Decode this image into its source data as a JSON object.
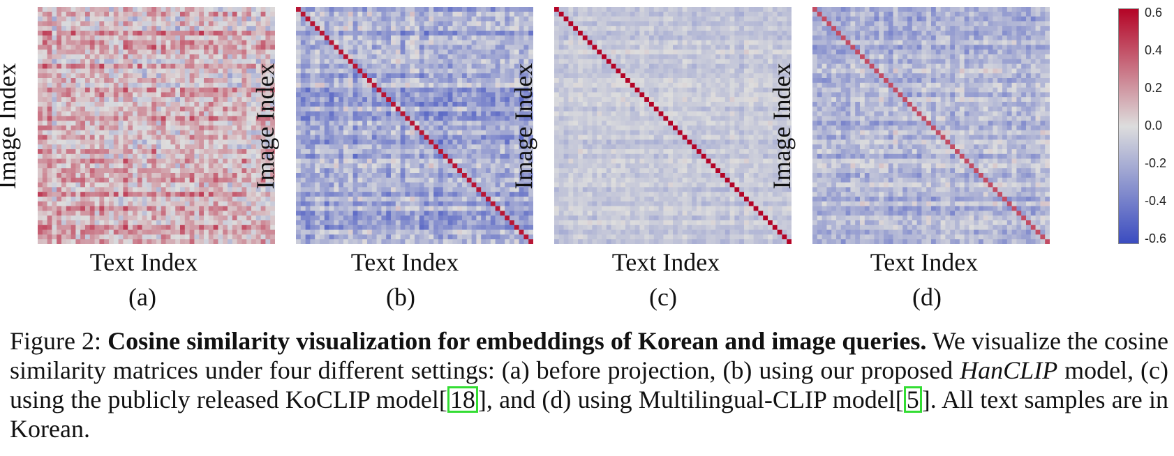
{
  "figure": {
    "panels": [
      {
        "id": "a",
        "ylabel": "Image Index",
        "xlabel": "Text Index",
        "sublabel": "(a)"
      },
      {
        "id": "b",
        "ylabel": "Image Index",
        "xlabel": "Text Index",
        "sublabel": "(b)"
      },
      {
        "id": "c",
        "ylabel": "Image Index",
        "xlabel": "Text Index",
        "sublabel": "(c)"
      },
      {
        "id": "d",
        "ylabel": "Image Index",
        "xlabel": "Text Index",
        "sublabel": "(d)"
      }
    ],
    "colorbar": {
      "ticks": [
        "0.6",
        "0.4",
        "0.2",
        "0.0",
        "-0.2",
        "-0.4",
        "-0.6"
      ],
      "colormap": "coolwarm",
      "low_color": "#3b4cc0",
      "mid_color": "#dddddd",
      "high_color": "#b40426"
    }
  },
  "chart_data": {
    "type": "heatmap",
    "grid_size": 50,
    "vmin": -0.6,
    "vmax": 0.6,
    "panels": [
      {
        "id": "a",
        "xlabel": "Text Index",
        "ylabel": "Image Index",
        "diagonal_value": 0.2,
        "offdiag_mean": 0.1,
        "offdiag_spread": 0.35
      },
      {
        "id": "b",
        "xlabel": "Text Index",
        "ylabel": "Image Index",
        "diagonal_value": 0.55,
        "offdiag_mean": -0.2,
        "offdiag_spread": 0.28
      },
      {
        "id": "c",
        "xlabel": "Text Index",
        "ylabel": "Image Index",
        "diagonal_value": 0.6,
        "offdiag_mean": -0.08,
        "offdiag_spread": 0.12
      },
      {
        "id": "d",
        "xlabel": "Text Index",
        "ylabel": "Image Index",
        "diagonal_value": 0.4,
        "offdiag_mean": -0.15,
        "offdiag_spread": 0.22
      }
    ]
  },
  "caption": {
    "figure_label": "Figure 2:",
    "bold_title": "Cosine similarity visualization for embeddings of Korean and image queries.",
    "part1": " We visualize the cosine similarity matrices under four different settings: (a) before projection, (b) using our proposed ",
    "italic_model": "HanCLIP",
    "part2": " model, (c) using the publicly released KoCLIP model",
    "cite1_open": "[",
    "cite1": "18",
    "cite1_close": "]",
    "part3": ", and (d) using Multilingual-CLIP model",
    "cite2_open": "[",
    "cite2": "5",
    "cite2_close": "]",
    "part4": ". All text samples are in Korean."
  }
}
